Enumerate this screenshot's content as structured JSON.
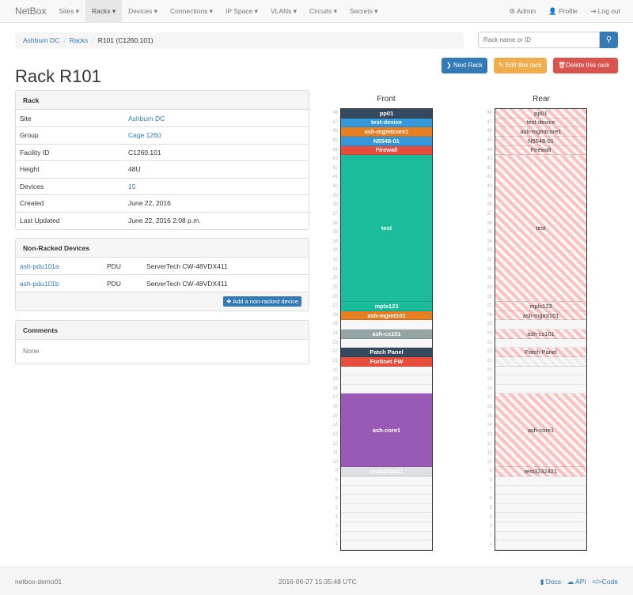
{
  "nav": {
    "brand": "NetBox",
    "items": [
      "Sites",
      "Racks",
      "Devices",
      "Connections",
      "IP Space",
      "VLANs",
      "Circuits",
      "Secrets"
    ],
    "active": "Racks",
    "right": [
      {
        "icon": "gear-icon",
        "label": "Admin"
      },
      {
        "icon": "user-icon",
        "label": "Profile"
      },
      {
        "icon": "logout-icon",
        "label": "Log out"
      }
    ]
  },
  "breadcrumb": [
    "Ashburn DC",
    "Racks",
    "R101 (C1260.101)"
  ],
  "search": {
    "placeholder": "Rack name or ID",
    "icon": "search-icon"
  },
  "buttons": {
    "next": "Next Rack",
    "edit": "Edit this rack",
    "delete": "Delete this rack"
  },
  "colors": {
    "primary": "#337ab7",
    "warning": "#f0ad4e",
    "danger": "#d9534f"
  },
  "title": "Rack R101",
  "rack_panel": {
    "heading": "Rack",
    "rows": [
      {
        "label": "Site",
        "value": "Ashburn DC",
        "link": true
      },
      {
        "label": "Group",
        "value": "Cage 1260",
        "link": true
      },
      {
        "label": "Facility ID",
        "value": "C1260.101"
      },
      {
        "label": "Height",
        "value": "48U"
      },
      {
        "label": "Devices",
        "value": "15",
        "link": true
      },
      {
        "label": "Created",
        "value": "June 22, 2016"
      },
      {
        "label": "Last Updated",
        "value": "June 22, 2016 2:08 p.m."
      }
    ]
  },
  "non_racked": {
    "heading": "Non-Racked Devices",
    "rows": [
      {
        "name": "ash-pdu101a",
        "role": "PDU",
        "type": "ServerTech CW-48VDX411"
      },
      {
        "name": "ash-pdu101b",
        "role": "PDU",
        "type": "ServerTech CW-48VDX411"
      }
    ],
    "add_label": "Add a non-racked device"
  },
  "comments": {
    "heading": "Comments",
    "body": "None"
  },
  "rack": {
    "front_label": "Front",
    "rear_label": "Rear",
    "height_u": 48,
    "devices": [
      {
        "name": "pp01",
        "position": 48,
        "height": 1,
        "color": "#34495e"
      },
      {
        "name": "test-device",
        "position": 47,
        "height": 1,
        "color": "#3498db"
      },
      {
        "name": "ash-mgmtcore1",
        "position": 46,
        "height": 1,
        "color": "#e67e22"
      },
      {
        "name": "N5548-01",
        "position": 45,
        "height": 1,
        "color": "#3498db"
      },
      {
        "name": "Firewall",
        "position": 44,
        "height": 1,
        "color": "#e74c3c"
      },
      {
        "name": "test",
        "position": 28,
        "height": 16,
        "color": "#1abc9c"
      },
      {
        "name": "mpls123",
        "position": 27,
        "height": 1,
        "color": "#1abc9c"
      },
      {
        "name": "ash-mgmt101",
        "position": 26,
        "height": 1,
        "color": "#e67e22"
      },
      {
        "name": "ash-cs101",
        "position": 24,
        "height": 1,
        "color": "#95a5a6"
      },
      {
        "name": "Patch Panel",
        "position": 22,
        "height": 1,
        "color": "#34495e"
      },
      {
        "name": "Fortinet FW",
        "position": 21,
        "height": 1,
        "color": "#e74c3c",
        "front_only": true
      },
      {
        "name": "ash-core1",
        "position": 10,
        "height": 8,
        "color": "#9b59b6"
      },
      {
        "name": "test3232421",
        "position": 9,
        "height": 1,
        "color": "#dde1e4"
      }
    ]
  },
  "footer": {
    "host": "netbox-demo01",
    "timestamp": "2016-06-27 15:35:48 UTC",
    "links": [
      "Docs",
      "API",
      "Code"
    ]
  }
}
